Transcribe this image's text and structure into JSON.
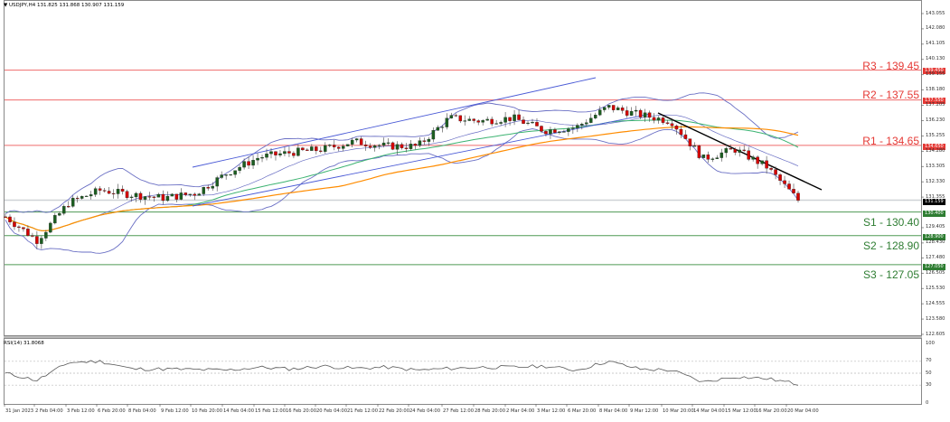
{
  "header": {
    "symbol_line": "USDJPY,H4  131.825 131.868 130.907 131.159",
    "symbol": "USDJPY,H4",
    "ohlc": {
      "open": "131.825",
      "high": "131.868",
      "low": "130.907",
      "close": "131.159"
    }
  },
  "rsi_panel": {
    "title": "RSI(14) 31.8068",
    "levels": [
      "100",
      "70",
      "50",
      "30",
      "0"
    ]
  },
  "colors": {
    "resistance": "#e53935",
    "support": "#2e7d32",
    "bull_candle": "#1b5e20",
    "bear_candle": "#d50000",
    "bollinger": "#6a6fc4",
    "ma_fast": "#2f5fbf",
    "ma_mid": "#3cb371",
    "ma_slow": "#ff8c00",
    "trendline_down": "#000000",
    "channel_up": "#4a5ad6",
    "current_price": "#cfd2d6",
    "rsi_line": "#555555"
  },
  "levels": {
    "r3": {
      "label": "R3 - 139.45",
      "tag": "139.450"
    },
    "r2": {
      "label": "R2 - 137.55",
      "tag": "137.550"
    },
    "r1": {
      "label": "R1 - 134.65",
      "tag": "134.650"
    },
    "current": {
      "tag": "131.159"
    },
    "s1": {
      "label": "S1 - 130.40",
      "tag": "130.400"
    },
    "s2": {
      "label": "S2 - 128.90",
      "tag": "128.900"
    },
    "s3": {
      "label": "S3 - 127.05",
      "tag": "127.050"
    }
  },
  "price_axis": [
    "143.055",
    "142.080",
    "141.105",
    "140.130",
    "139.155",
    "138.180",
    "137.205",
    "136.230",
    "135.255",
    "134.280",
    "133.305",
    "132.330",
    "131.355",
    "129.405",
    "128.430",
    "127.480",
    "126.505",
    "125.530",
    "124.555",
    "123.580",
    "122.605"
  ],
  "time_axis": [
    "31 Jan 2023",
    "2 Feb 04:00",
    "3 Feb 12:00",
    "6 Feb 20:00",
    "8 Feb 04:00",
    "9 Feb 12:00",
    "10 Feb 20:00",
    "14 Feb 04:00",
    "15 Feb 12:00",
    "16 Feb 20:00",
    "20 Feb 04:00",
    "21 Feb 12:00",
    "22 Feb 20:00",
    "24 Feb 04:00",
    "27 Feb 12:00",
    "28 Feb 20:00",
    "2 Mar 04:00",
    "3 Mar 12:00",
    "6 Mar 20:00",
    "8 Mar 04:00",
    "9 Mar 12:00",
    "10 Mar 20:00",
    "14 Mar 04:00",
    "15 Mar 12:00",
    "16 Mar 20:00",
    "20 Mar 04:00"
  ],
  "chart_data": {
    "type": "candlestick",
    "title": "USDJPY,H4",
    "xlabel": "",
    "ylabel": "",
    "ylim": [
      122.605,
      143.055
    ],
    "grid": false,
    "categories": [
      "31 Jan 2023",
      "2 Feb 04:00",
      "3 Feb 12:00",
      "6 Feb 20:00",
      "8 Feb 04:00",
      "9 Feb 12:00",
      "10 Feb 20:00",
      "14 Feb 04:00",
      "15 Feb 12:00",
      "16 Feb 20:00",
      "20 Feb 04:00",
      "21 Feb 12:00",
      "22 Feb 20:00",
      "24 Feb 04:00",
      "27 Feb 12:00",
      "28 Feb 20:00",
      "2 Mar 04:00",
      "3 Mar 12:00",
      "6 Mar 20:00",
      "8 Mar 04:00",
      "9 Mar 12:00",
      "10 Mar 20:00",
      "14 Mar 04:00",
      "15 Mar 12:00",
      "16 Mar 20:00",
      "20 Mar 04:00"
    ],
    "series": [
      {
        "name": "USDJPY close (approx)",
        "values": [
          130.1,
          128.6,
          131.0,
          131.8,
          131.5,
          131.3,
          131.6,
          132.9,
          133.9,
          134.2,
          134.4,
          134.9,
          134.6,
          134.6,
          136.4,
          136.2,
          136.4,
          135.6,
          135.8,
          137.1,
          136.6,
          136.2,
          133.8,
          134.4,
          133.3,
          131.159
        ]
      },
      {
        "name": "RSI(14) (approx)",
        "values": [
          50,
          38,
          68,
          70,
          57,
          57,
          56,
          55,
          60,
          57,
          62,
          58,
          60,
          55,
          58,
          60,
          60,
          62,
          55,
          70,
          57,
          55,
          35,
          44,
          41,
          31.8
        ]
      }
    ],
    "horizontal_levels": [
      {
        "name": "R3",
        "value": 139.45
      },
      {
        "name": "R2",
        "value": 137.55
      },
      {
        "name": "R1",
        "value": 134.65
      },
      {
        "name": "S1",
        "value": 130.4
      },
      {
        "name": "S2",
        "value": 128.9
      },
      {
        "name": "S3",
        "value": 127.05
      },
      {
        "name": "Current",
        "value": 131.159
      }
    ],
    "indicators": [
      "Bollinger Bands",
      "Moving averages (3)",
      "Ascending channel line",
      "Descending trendline",
      "RSI(14)"
    ],
    "rsi_levels": [
      70,
      50,
      30
    ],
    "rsi_ylim": [
      0,
      100
    ]
  }
}
